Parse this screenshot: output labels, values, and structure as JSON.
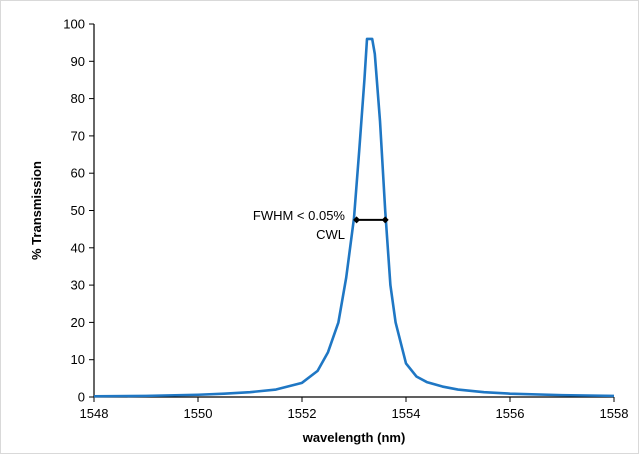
{
  "chart_data": {
    "type": "line",
    "xlabel": "wavelength (nm)",
    "ylabel": "% Transmission",
    "xlim": [
      1548,
      1558
    ],
    "ylim": [
      0,
      100
    ],
    "x_ticks": [
      1548,
      1550,
      1552,
      1554,
      1556,
      1558
    ],
    "y_ticks": [
      0,
      10,
      20,
      30,
      40,
      50,
      60,
      70,
      80,
      90,
      100
    ],
    "grid": false,
    "series": [
      {
        "color": "#1f77c4",
        "x": [
          1548,
          1549,
          1550,
          1550.5,
          1551,
          1551.5,
          1552,
          1552.3,
          1552.5,
          1552.7,
          1552.85,
          1553,
          1553.1,
          1553.2,
          1553.25,
          1553.35,
          1553.4,
          1553.5,
          1553.6,
          1553.7,
          1553.8,
          1554,
          1554.2,
          1554.4,
          1554.7,
          1555,
          1555.5,
          1556,
          1557,
          1558
        ],
        "y": [
          0.2,
          0.3,
          0.6,
          0.9,
          1.3,
          2.0,
          3.8,
          7.0,
          12.0,
          20.0,
          32.0,
          48.0,
          66.0,
          85.0,
          96.0,
          96.0,
          92.0,
          74.0,
          50.0,
          30.0,
          20.0,
          9.0,
          5.5,
          4.0,
          2.8,
          2.0,
          1.3,
          0.9,
          0.5,
          0.3
        ]
      }
    ],
    "annotations": [
      {
        "lines": [
          "FWHM < 0.05%",
          "CWL"
        ],
        "fwhm_x": [
          1553.05,
          1553.6
        ],
        "fwhm_y": 47.5
      }
    ]
  }
}
